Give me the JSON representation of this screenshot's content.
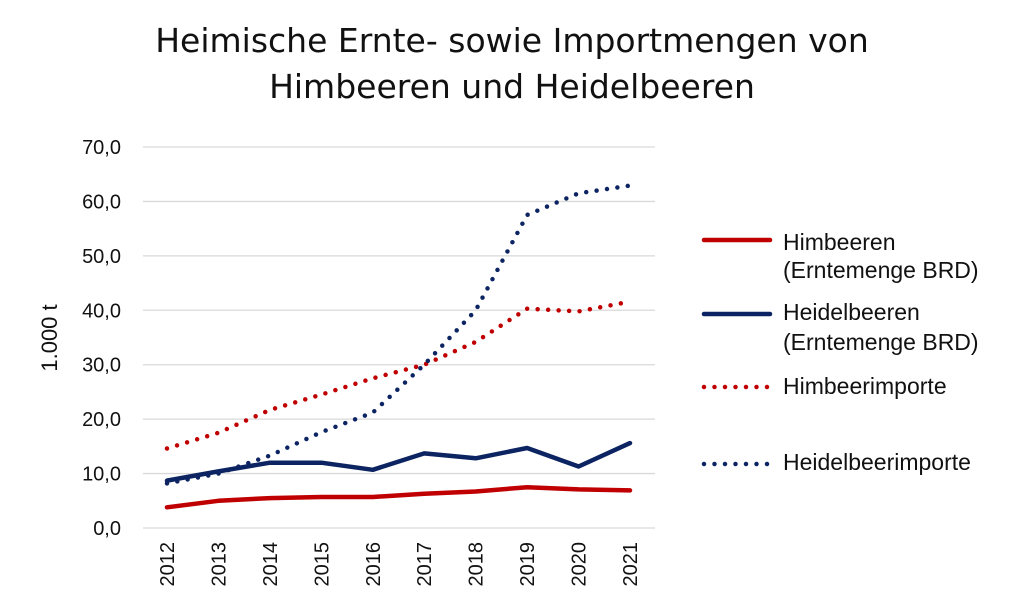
{
  "chart_data": {
    "type": "line",
    "title_lines": [
      "Heimische Ernte- sowie Importmengen von",
      "Himbeeren und Heidelbeeren"
    ],
    "ylabel": "1.000 t",
    "xlabel": "",
    "ylim": [
      0,
      70
    ],
    "y_ticks": [
      0,
      10,
      20,
      30,
      40,
      50,
      60,
      70
    ],
    "y_tick_labels": [
      "0,0",
      "10,0",
      "20,0",
      "30,0",
      "40,0",
      "50,0",
      "60,0",
      "70,0"
    ],
    "categories": [
      "2012",
      "2013",
      "2014",
      "2015",
      "2016",
      "2017",
      "2018",
      "2019",
      "2020",
      "2021"
    ],
    "grid": true,
    "legend_position": "right",
    "series": [
      {
        "name_lines": [
          "Himbeeren",
          "(Erntemenge BRD)"
        ],
        "color": "#c00000",
        "style": "solid",
        "values": [
          3.8,
          5.0,
          5.5,
          5.7,
          5.7,
          6.3,
          6.7,
          7.5,
          7.1,
          6.9
        ]
      },
      {
        "name_lines": [
          "Heidelbeeren",
          "(Erntemenge BRD)"
        ],
        "color": "#0d2463",
        "style": "solid",
        "values": [
          8.7,
          10.4,
          12.0,
          12.0,
          10.7,
          13.7,
          12.8,
          14.7,
          11.3,
          15.6
        ]
      },
      {
        "name_lines": [
          "Himbeerimporte"
        ],
        "color": "#c00000",
        "style": "dotted",
        "values": [
          14.6,
          17.5,
          21.7,
          24.5,
          27.5,
          30.0,
          34.2,
          40.3,
          39.8,
          41.6
        ]
      },
      {
        "name_lines": [
          "Heidelbeerimporte"
        ],
        "color": "#0d2463",
        "style": "dotted",
        "values": [
          8.2,
          10.0,
          13.3,
          17.6,
          21.2,
          30.0,
          40.0,
          57.5,
          61.5,
          62.9
        ]
      }
    ]
  }
}
